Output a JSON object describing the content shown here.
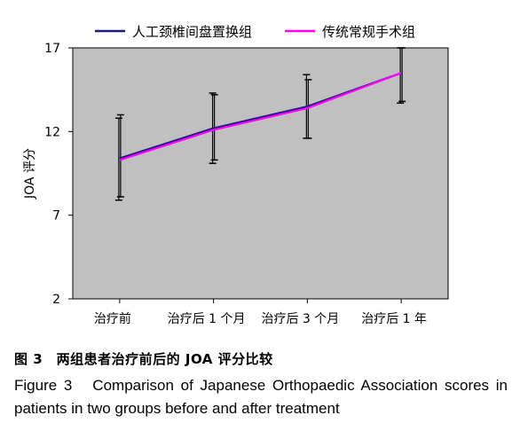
{
  "chart_data": {
    "type": "line",
    "ylabel": "JOA 评分",
    "xlabel": "",
    "categories": [
      "治疗前",
      "治疗后 1 个月",
      "治疗后 3 个月",
      "治疗后 1 年"
    ],
    "ylim": [
      2,
      17
    ],
    "yticks": [
      "2",
      "7",
      "12",
      "17"
    ],
    "grid": false,
    "legend_position": "top",
    "background": "#c0c0c0",
    "series": [
      {
        "name": "人工颈椎间盘置换组",
        "color": "#1a1a80",
        "values": [
          10.4,
          12.2,
          13.5,
          15.5
        ],
        "error_low": [
          7.9,
          10.1,
          11.6,
          13.7
        ],
        "error_high": [
          12.8,
          14.3,
          15.4,
          17.0
        ]
      },
      {
        "name": "传统常规手术组",
        "color": "#ff00ff",
        "values": [
          10.3,
          12.1,
          13.4,
          15.5
        ],
        "error_low": [
          8.1,
          10.3,
          11.6,
          13.8
        ],
        "error_high": [
          13.0,
          14.2,
          15.1,
          17.0
        ]
      }
    ]
  },
  "caption": {
    "zh": "图 3　两组患者治疗前后的 JOA 评分比较",
    "en": "Figure 3　Comparison of Japanese Orthopaedic Association scores in patients in two groups before and after treatment"
  }
}
